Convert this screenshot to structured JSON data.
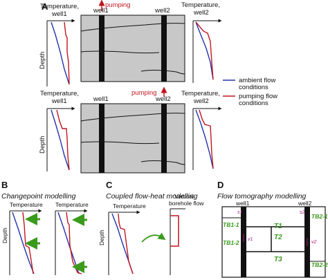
{
  "panel_a": {
    "letter": "A",
    "top": {
      "left_profile": "Temperature,\nwell1",
      "right_profile": "Temperature,\nwell2",
      "depth": "Depth",
      "well1": "well1",
      "well2": "well2",
      "pumping": "pumping"
    },
    "bottom": {
      "left_profile": "Temperature,\nwell1",
      "right_profile": "Temperature,\nwell2",
      "depth": "Depth",
      "well1": "well1",
      "well2": "well2",
      "pumping": "pumping"
    },
    "legend": {
      "ambient": "ambient flow\nconditions",
      "pumping": "pumping flow\nconditions"
    }
  },
  "panel_b": {
    "letter": "B",
    "title": "Changepoint modelling",
    "temp1": "Temperature",
    "temp2": "Temperature",
    "depth": "Depth"
  },
  "panel_c": {
    "letter": "C",
    "title": "Coupled flow-heat modelling",
    "temp": "Temperature",
    "depth": "Depth",
    "flow": "Vertical\nborehole flow"
  },
  "panel_d": {
    "letter": "D",
    "title": "Flow tomography modelling",
    "well1": "well1",
    "well2": "well2",
    "labels": {
      "tb11": "TB1-1",
      "tb12": "TB1-2",
      "t1": "T1",
      "t2": "T2",
      "t3": "T3",
      "tb21": "TB2-1",
      "tb22": "TB2-2",
      "s1": "s1",
      "s2": "s2",
      "v1": "v1",
      "v2": "v2"
    }
  },
  "colors": {
    "ambient": "#2233aa",
    "pumping": "#c0141e",
    "aquifer": "#c8c8c8",
    "arrow_green": "#3a9a1c"
  }
}
